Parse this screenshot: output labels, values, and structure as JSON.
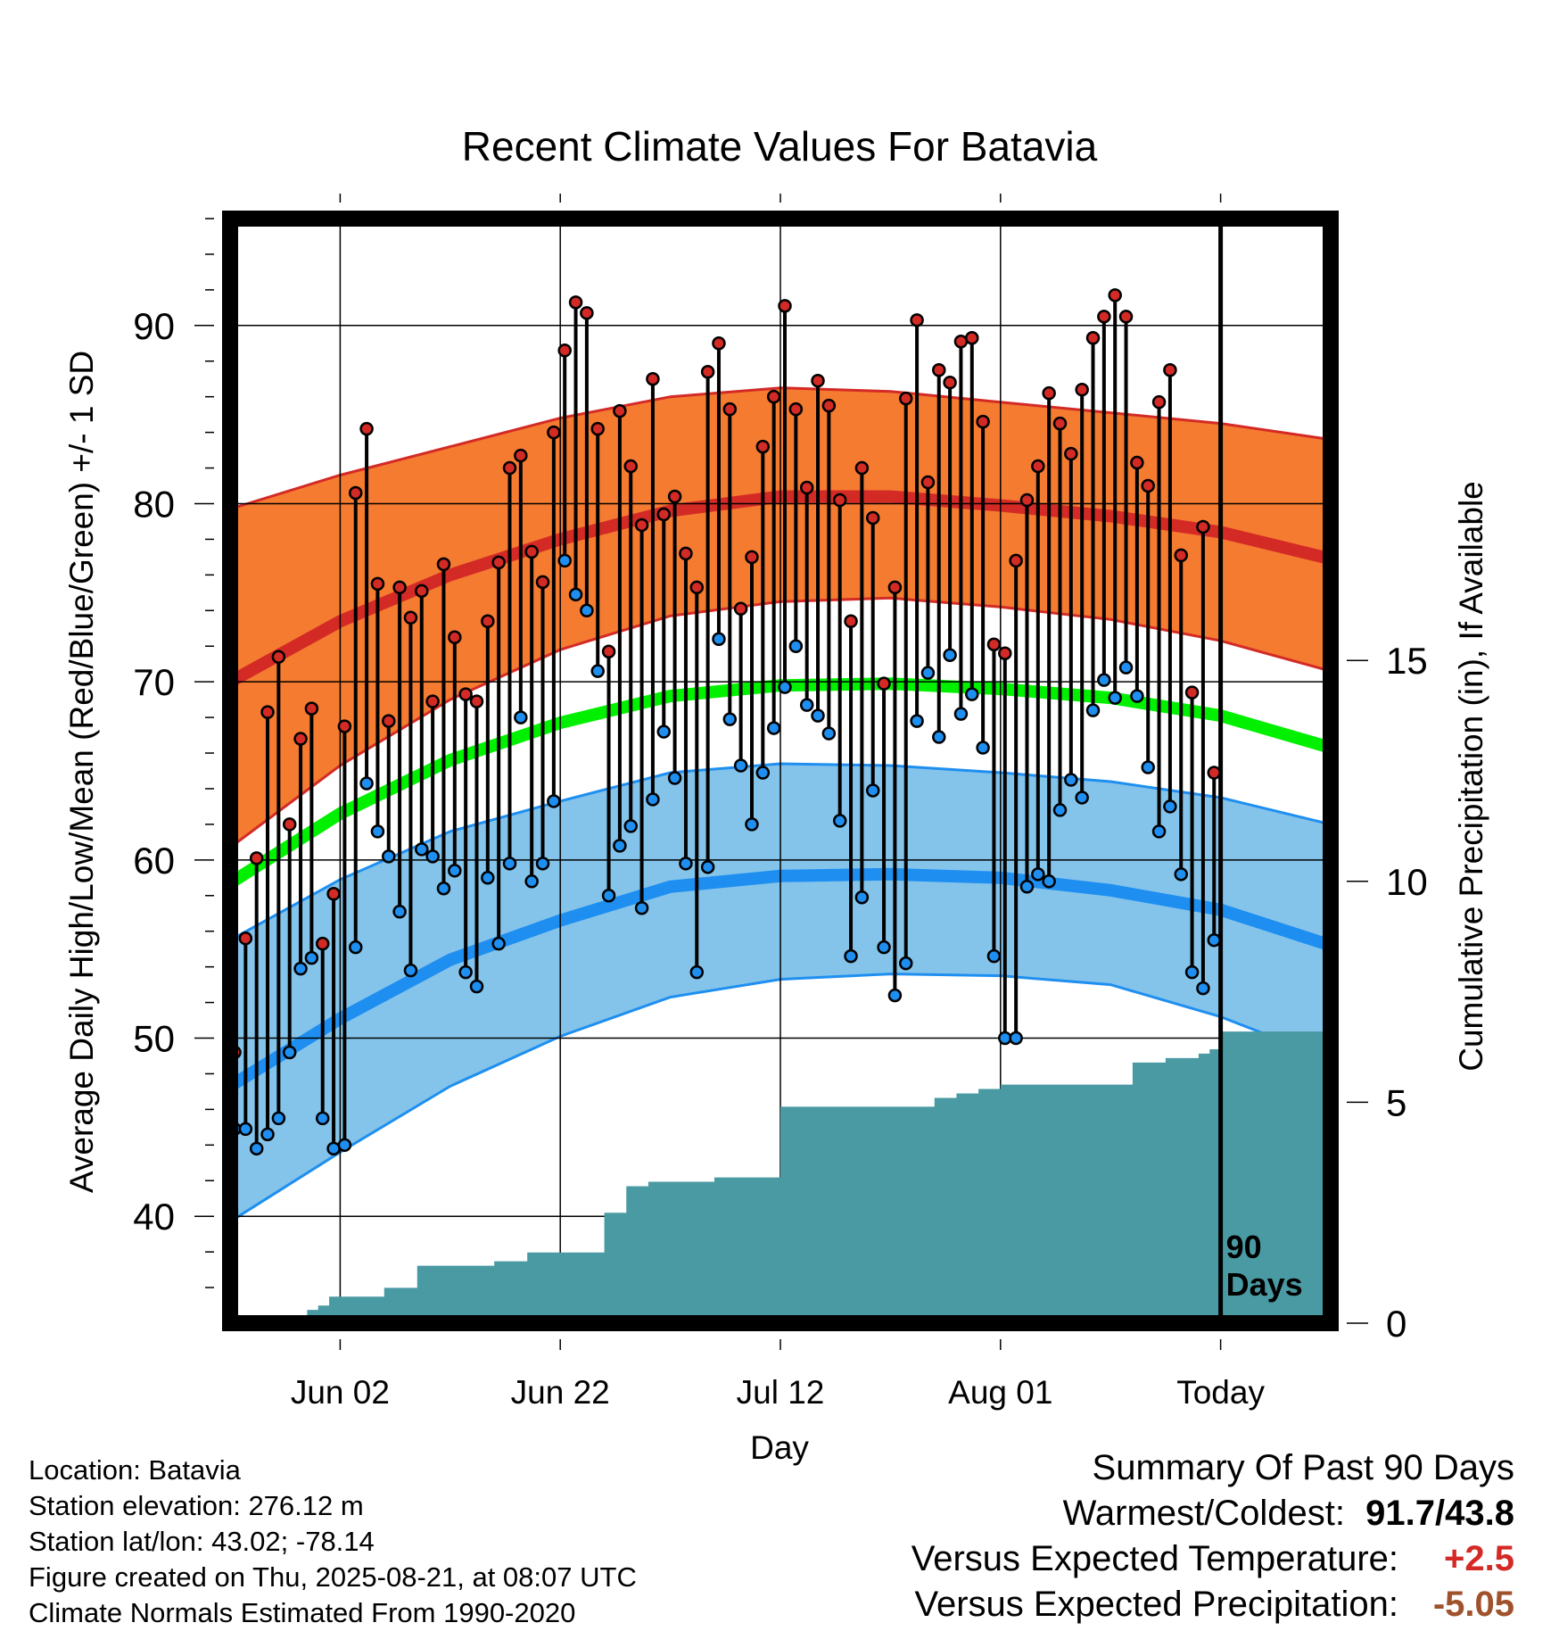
{
  "chart_data": {
    "type": "line",
    "title": "Recent Climate Values For Batavia",
    "xlabel": "Day",
    "ylabel_left": "Average Daily High/Low/Mean (Red/Blue/Green) +/- 1 SD",
    "ylabel_right": "Cumulative Precipitation (in), If Available",
    "x_tick_labels": [
      "Jun 02",
      "Jun 22",
      "Jul 12",
      "Aug 01",
      "Today"
    ],
    "x_tick_days": [
      10,
      30,
      50,
      70,
      90
    ],
    "xlim": [
      0,
      100
    ],
    "ylim_left": [
      34,
      96
    ],
    "y_ticks_left": [
      40,
      50,
      60,
      70,
      80,
      90
    ],
    "ylim_right": [
      0,
      25
    ],
    "y_ticks_right": [
      0,
      5,
      10,
      15
    ],
    "grid": true,
    "today_marker_label": "90\nDays",
    "today_marker_lines": [
      "90",
      "Days"
    ],
    "colors": {
      "high_normal_line": "#d42a26",
      "high_band": "#f47b30",
      "low_normal_line": "#1e8ff0",
      "low_band": "#85c4ea",
      "mean_normal_line": "#00f000",
      "precip_fill": "#4a9aa3",
      "high_marker": "#d42a26",
      "low_marker": "#1e8ff0"
    },
    "normal_curves": {
      "days": [
        0,
        10,
        20,
        30,
        40,
        50,
        60,
        70,
        80,
        90,
        100
      ],
      "high_mean": [
        70.0,
        73.4,
        76.0,
        78.0,
        79.6,
        80.4,
        80.4,
        79.9,
        79.3,
        78.4,
        76.9
      ],
      "high_sd_upper": [
        79.7,
        81.6,
        83.2,
        84.8,
        86.0,
        86.5,
        86.3,
        85.7,
        85.1,
        84.5,
        83.6
      ],
      "high_sd_lower": [
        60.7,
        65.3,
        69.0,
        71.8,
        73.7,
        74.5,
        74.7,
        74.2,
        73.5,
        72.3,
        70.6
      ],
      "mean_normal": [
        58.7,
        62.6,
        65.6,
        67.7,
        69.2,
        69.8,
        69.9,
        69.6,
        69.1,
        68.1,
        66.3
      ],
      "low_mean": [
        47.3,
        51.1,
        54.4,
        56.6,
        58.5,
        59.1,
        59.2,
        59.0,
        58.3,
        57.2,
        55.2
      ],
      "low_sd_upper": [
        55.5,
        58.9,
        61.6,
        63.3,
        64.9,
        65.4,
        65.3,
        64.9,
        64.4,
        63.5,
        62.0
      ],
      "low_sd_lower": [
        39.7,
        43.6,
        47.3,
        50.1,
        52.3,
        53.3,
        53.6,
        53.5,
        53.0,
        51.2,
        48.8
      ]
    },
    "series": [
      {
        "name": "Daily High",
        "days": [
          0,
          1,
          2,
          3,
          4,
          5,
          6,
          7,
          8,
          9,
          10,
          11,
          12,
          13,
          14,
          15,
          16,
          17,
          18,
          19,
          20,
          21,
          22,
          23,
          24,
          25,
          26,
          27,
          28,
          29,
          30,
          31,
          32,
          33,
          34,
          35,
          36,
          37,
          38,
          39,
          40,
          41,
          42,
          43,
          44,
          45,
          46,
          47,
          48,
          49,
          50,
          51,
          52,
          53,
          54,
          55,
          56,
          57,
          58,
          59,
          60,
          61,
          62,
          63,
          64,
          65,
          66,
          67,
          68,
          69,
          70,
          71,
          72,
          73,
          74,
          75,
          76,
          77,
          78,
          79,
          80,
          81,
          82,
          83,
          84,
          85,
          86,
          87,
          88,
          89
        ],
        "values": [
          49.2,
          55.6,
          60.1,
          68.3,
          71.4,
          62.0,
          66.8,
          68.5,
          55.3,
          58.1,
          67.5,
          80.6,
          84.2,
          75.5,
          67.8,
          75.3,
          73.6,
          75.1,
          68.9,
          76.6,
          72.5,
          69.3,
          68.9,
          73.4,
          76.7,
          82.0,
          82.7,
          77.3,
          75.6,
          84.0,
          88.6,
          91.3,
          90.7,
          84.2,
          71.7,
          85.2,
          82.1,
          78.8,
          87.0,
          79.4,
          80.4,
          77.2,
          75.3,
          87.4,
          89.0,
          85.3,
          74.1,
          77.0,
          83.2,
          86.0,
          91.1,
          85.3,
          80.9,
          86.9,
          85.5,
          80.2,
          73.4,
          82.0,
          79.2,
          69.9,
          75.3,
          85.9,
          90.3,
          81.2,
          87.5,
          86.8,
          89.1,
          89.3,
          84.6,
          72.1,
          71.6,
          76.8,
          80.2,
          82.1,
          86.2,
          84.5,
          82.8,
          86.4,
          89.3,
          90.5,
          91.7,
          90.5,
          82.3,
          81.0,
          85.7,
          87.5,
          77.1,
          69.4,
          78.7,
          64.9
        ]
      },
      {
        "name": "Daily Low",
        "days": [
          0,
          1,
          2,
          3,
          4,
          5,
          6,
          7,
          8,
          9,
          10,
          11,
          12,
          13,
          14,
          15,
          16,
          17,
          18,
          19,
          20,
          21,
          22,
          23,
          24,
          25,
          26,
          27,
          28,
          29,
          30,
          31,
          32,
          33,
          34,
          35,
          36,
          37,
          38,
          39,
          40,
          41,
          42,
          43,
          44,
          45,
          46,
          47,
          48,
          49,
          50,
          51,
          52,
          53,
          54,
          55,
          56,
          57,
          58,
          59,
          60,
          61,
          62,
          63,
          64,
          65,
          66,
          67,
          68,
          69,
          70,
          71,
          72,
          73,
          74,
          75,
          76,
          77,
          78,
          79,
          80,
          81,
          82,
          83,
          84,
          85,
          86,
          87,
          88,
          89
        ],
        "values": [
          44.9,
          44.9,
          43.8,
          44.6,
          45.5,
          49.2,
          53.9,
          54.5,
          45.5,
          43.8,
          44.0,
          55.1,
          64.3,
          61.6,
          60.2,
          57.1,
          53.8,
          60.6,
          60.2,
          58.4,
          59.4,
          53.7,
          52.9,
          59.0,
          55.3,
          59.8,
          68.0,
          58.8,
          59.8,
          63.3,
          76.8,
          74.9,
          74.0,
          70.6,
          58.0,
          60.8,
          61.9,
          57.3,
          63.4,
          67.2,
          64.6,
          59.8,
          53.7,
          59.6,
          72.4,
          67.9,
          65.3,
          62.0,
          64.9,
          67.4,
          69.7,
          72.0,
          68.7,
          68.1,
          67.1,
          62.2,
          54.6,
          57.9,
          63.9,
          55.1,
          52.4,
          54.2,
          67.8,
          70.5,
          66.9,
          71.5,
          68.2,
          69.3,
          66.3,
          54.6,
          50.0,
          50.0,
          58.5,
          59.2,
          58.8,
          62.8,
          64.5,
          63.5,
          68.4,
          70.1,
          69.1,
          70.8,
          69.2,
          65.2,
          61.6,
          63.0,
          59.2,
          53.7,
          52.8,
          55.5
        ]
      },
      {
        "name": "Cumulative Precipitation",
        "days": [
          0,
          5,
          7,
          8,
          9,
          10,
          13,
          14,
          16,
          17,
          18,
          22,
          24,
          25,
          27,
          30,
          33,
          34,
          35,
          36,
          37,
          38,
          39,
          40,
          42,
          44,
          48,
          49,
          50,
          52,
          56,
          58,
          60,
          62,
          64,
          66,
          68,
          70,
          72,
          74,
          76,
          78,
          80,
          81,
          82,
          83,
          85,
          86,
          87,
          88,
          89,
          90,
          91,
          100
        ],
        "values": [
          0,
          0,
          0.3,
          0.4,
          0.6,
          0.6,
          0.6,
          0.8,
          0.8,
          1.3,
          1.3,
          1.3,
          1.4,
          1.4,
          1.6,
          1.6,
          1.6,
          2.5,
          2.5,
          3.1,
          3.1,
          3.2,
          3.2,
          3.2,
          3.2,
          3.3,
          3.3,
          3.3,
          4.9,
          4.9,
          4.9,
          4.9,
          4.9,
          4.9,
          5.1,
          5.2,
          5.3,
          5.4,
          5.4,
          5.4,
          5.4,
          5.4,
          5.4,
          5.4,
          5.9,
          5.9,
          6.0,
          6.0,
          6.0,
          6.1,
          6.2,
          6.6,
          6.6,
          6.6
        ]
      }
    ]
  },
  "footer": {
    "location": "Location: Batavia",
    "elevation": "Station elevation: 276.12 m",
    "latlon": "Station lat/lon: 43.02; -78.14",
    "created": "Figure created on Thu, 2025-08-21, at 08:07 UTC",
    "normals": "Climate Normals Estimated From 1990-2020"
  },
  "summary": {
    "heading": "Summary Of Past 90 Days",
    "warm_cold_label": "Warmest/Coldest:",
    "warm_cold_value": "91.7/43.8",
    "temp_label": "Versus Expected Temperature:",
    "temp_value": "+2.5",
    "temp_color": "#d42a26",
    "precip_label": "Versus Expected Precipitation:",
    "precip_value": "-5.05",
    "precip_color": "#a0522d"
  }
}
